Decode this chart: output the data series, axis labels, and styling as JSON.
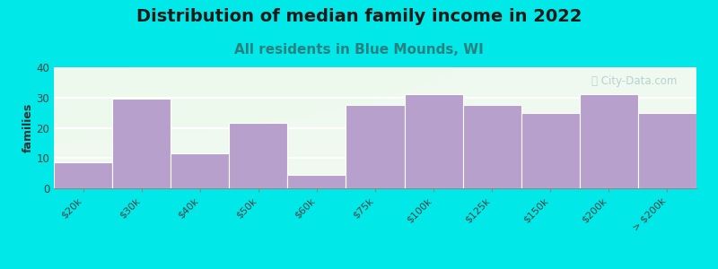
{
  "title": "Distribution of median family income in 2022",
  "subtitle": "All residents in Blue Mounds, WI",
  "categories": [
    "$20k",
    "$30k",
    "$40k",
    "$50k",
    "$60k",
    "$75k",
    "$100k",
    "$125k",
    "$150k",
    "$200k",
    "> $200k"
  ],
  "values": [
    8.5,
    29.5,
    11.5,
    21.5,
    4.5,
    27.5,
    31,
    27.5,
    25,
    31,
    25
  ],
  "bar_color": "#b8a0cc",
  "bar_edge_color": "white",
  "bg_color": "#00e8e8",
  "plot_bg_color": "#f5faf5",
  "ylabel": "families",
  "ylim": [
    0,
    40
  ],
  "yticks": [
    0,
    10,
    20,
    30,
    40
  ],
  "title_fontsize": 14,
  "title_color": "#1a1a1a",
  "subtitle_fontsize": 11,
  "subtitle_color": "#2a8080",
  "watermark": "City-Data.com",
  "watermark_color": "#aacccc"
}
